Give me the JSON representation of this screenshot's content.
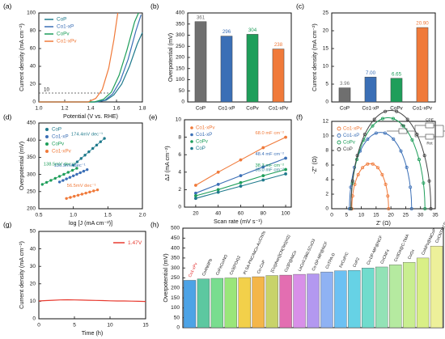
{
  "figure": {
    "panels": [
      {
        "id": "a",
        "letter": "(a)"
      },
      {
        "id": "b",
        "letter": "(b)"
      },
      {
        "id": "c",
        "letter": "(c)"
      },
      {
        "id": "d",
        "letter": "(d)"
      },
      {
        "id": "e",
        "letter": "(e)"
      },
      {
        "id": "f",
        "letter": "(f)"
      },
      {
        "id": "g",
        "letter": "(g)"
      },
      {
        "id": "h",
        "letter": "(h)"
      }
    ]
  },
  "chart_data": [
    {
      "id": "a",
      "type": "line",
      "xlabel": "Potential (V vs. RHE)",
      "ylabel": "Current density (mA cm⁻²)",
      "xlim": [
        1.0,
        1.8
      ],
      "ylim": [
        0,
        100
      ],
      "xticks": [
        "1.0",
        "1.2",
        "1.4",
        "1.6",
        "1.8"
      ],
      "yticks": [
        "0",
        "20",
        "40",
        "60",
        "80",
        "100"
      ],
      "annotation": "10",
      "reference_line_y": 10,
      "legend": "top-left",
      "series": [
        {
          "name": "CoP",
          "color": "#1f7a8c",
          "points": [
            [
              1.0,
              0
            ],
            [
              1.45,
              0
            ],
            [
              1.52,
              2
            ],
            [
              1.58,
              8
            ],
            [
              1.64,
              20
            ],
            [
              1.7,
              40
            ],
            [
              1.76,
              65
            ],
            [
              1.8,
              78
            ]
          ]
        },
        {
          "name": "Co1-xP",
          "color": "#3b6fb6",
          "points": [
            [
              1.0,
              0
            ],
            [
              1.44,
              0
            ],
            [
              1.51,
              2
            ],
            [
              1.57,
              9
            ],
            [
              1.63,
              24
            ],
            [
              1.69,
              48
            ],
            [
              1.75,
              80
            ],
            [
              1.79,
              98
            ]
          ]
        },
        {
          "name": "CoPv",
          "color": "#1e9e5a",
          "points": [
            [
              1.0,
              0
            ],
            [
              1.43,
              0
            ],
            [
              1.5,
              3
            ],
            [
              1.56,
              11
            ],
            [
              1.62,
              30
            ],
            [
              1.68,
              58
            ],
            [
              1.74,
              90
            ],
            [
              1.77,
              100
            ]
          ]
        },
        {
          "name": "Co1-xPv",
          "color": "#f07a3a",
          "points": [
            [
              1.0,
              0
            ],
            [
              1.38,
              0
            ],
            [
              1.44,
              4
            ],
            [
              1.49,
              14
            ],
            [
              1.54,
              38
            ],
            [
              1.58,
              70
            ],
            [
              1.61,
              100
            ]
          ]
        }
      ]
    },
    {
      "id": "b",
      "type": "bar",
      "xlabel": "",
      "ylabel": "Overpotential (mV)",
      "ylim": [
        0,
        400
      ],
      "yticks": [
        "0",
        "50",
        "100",
        "150",
        "200",
        "250",
        "300",
        "350",
        "400"
      ],
      "categories": [
        "CoP",
        "Co1-xP",
        "CoPv",
        "Co1-xPv"
      ],
      "values": [
        361,
        296,
        304,
        238
      ],
      "value_labels": [
        "361",
        "296",
        "304",
        "238"
      ],
      "colors": [
        "#6f6f6f",
        "#3b6fb6",
        "#1e9e5a",
        "#f07a3a"
      ]
    },
    {
      "id": "c",
      "type": "bar",
      "xlabel": "",
      "ylabel": "Current density (mA cm⁻²)",
      "ylim": [
        0,
        25
      ],
      "yticks": [
        "0",
        "5",
        "10",
        "15",
        "20",
        "25"
      ],
      "categories": [
        "CoP",
        "Co1-xP",
        "CoPv",
        "Co1-xPv"
      ],
      "values": [
        3.96,
        7.0,
        6.65,
        20.9
      ],
      "value_labels": [
        "3.96",
        "7.00",
        "6.65",
        "20.90"
      ],
      "colors": [
        "#6f6f6f",
        "#3b6fb6",
        "#1e9e5a",
        "#f07a3a"
      ]
    },
    {
      "id": "d",
      "type": "scatter",
      "xlabel": "log [J (mA cm⁻²)]",
      "ylabel": "Overpotential (mV)",
      "xlim": [
        0.5,
        2.0
      ],
      "ylim": [
        200,
        450
      ],
      "xticks": [
        "0.5",
        "1.0",
        "1.5",
        "2.0"
      ],
      "yticks": [
        "200",
        "250",
        "300",
        "350",
        "400",
        "450"
      ],
      "legend": "top-left",
      "series": [
        {
          "name": "CoP",
          "color": "#1f7a8c",
          "slope_label": "174.4mV dec⁻¹",
          "x_range": [
            1.0,
            1.45
          ],
          "y_range": [
            327,
            405
          ]
        },
        {
          "name": "Co1-xP",
          "color": "#3b6fb6",
          "slope_label": "136.9mV dec⁻¹",
          "x_range": [
            0.8,
            1.2
          ],
          "y_range": [
            278,
            314
          ]
        },
        {
          "name": "CoPv",
          "color": "#1e9e5a",
          "slope_label": "138.5mV dec⁻¹",
          "x_range": [
            0.55,
            1.05
          ],
          "y_range": [
            271,
            318
          ]
        },
        {
          "name": "Co1-xPv",
          "color": "#f07a3a",
          "slope_label": "56.5mV dec⁻¹",
          "x_range": [
            0.9,
            1.35
          ],
          "y_range": [
            230,
            255
          ]
        }
      ]
    },
    {
      "id": "e",
      "type": "scatter",
      "xlabel": "Scan rate (mV s⁻¹)",
      "ylabel": "ΔJ (mA cm⁻²)",
      "xlim": [
        10,
        105
      ],
      "ylim": [
        0,
        10
      ],
      "xticks": [
        "20",
        "40",
        "60",
        "80",
        "100"
      ],
      "yticks": [
        "0",
        "2",
        "4",
        "6",
        "8",
        "10"
      ],
      "legend": "top-left",
      "series": [
        {
          "name": "Co1-xPv",
          "color": "#f07a3a",
          "label": "68.0 mF cm⁻²",
          "x": [
            20,
            40,
            60,
            80,
            100
          ],
          "y": [
            2.5,
            4.0,
            5.4,
            6.8,
            8.0
          ]
        },
        {
          "name": "Co1-xP",
          "color": "#3b6fb6",
          "label": "48.4 mF cm⁻²",
          "x": [
            20,
            40,
            60,
            80,
            100
          ],
          "y": [
            1.6,
            2.6,
            3.6,
            4.6,
            5.6
          ]
        },
        {
          "name": "CoPv",
          "color": "#1e9e5a",
          "label": "38.3 mF cm⁻²",
          "x": [
            20,
            40,
            60,
            80,
            100
          ],
          "y": [
            1.3,
            2.0,
            2.8,
            3.6,
            4.3
          ]
        },
        {
          "name": "CoP",
          "color": "#1f7a8c",
          "label": "35.0 mF cm⁻²",
          "x": [
            20,
            40,
            60,
            80,
            100
          ],
          "y": [
            1.0,
            1.7,
            2.4,
            3.1,
            3.8
          ]
        }
      ]
    },
    {
      "id": "f",
      "type": "scatter",
      "xlabel": "Z' (Ω)",
      "ylabel": "-Z'' (Ω)",
      "xlim": [
        0,
        35
      ],
      "ylim": [
        0,
        12
      ],
      "xticks": [
        "0",
        "5",
        "10",
        "15",
        "20",
        "25",
        "30",
        "35"
      ],
      "yticks": [
        "0",
        "2",
        "4",
        "6",
        "8",
        "10",
        "12"
      ],
      "legend": "top-left",
      "circuit_labels": [
        "Rs",
        "CPE",
        "Rct"
      ],
      "series": [
        {
          "name": "Co1-xPv",
          "color": "#f07a3a",
          "center": [
            13.0,
            0
          ],
          "radius": 6.2,
          "max_x": 19.2
        },
        {
          "name": "Co1-xP",
          "color": "#3b6fb6",
          "center": [
            16.5,
            0
          ],
          "radius": 10.5,
          "max_x": 27.0
        },
        {
          "name": "CoPv",
          "color": "#1e9e5a",
          "center": [
            19.0,
            0
          ],
          "radius": 12.5,
          "max_x": 31.5
        },
        {
          "name": "CoP",
          "color": "#444444",
          "center": [
            20.0,
            0
          ],
          "radius": 13.5,
          "max_x": 33.5
        }
      ]
    },
    {
      "id": "g",
      "type": "line",
      "xlabel": "Time (h)",
      "ylabel": "Current density (mA cm⁻²)",
      "xlim": [
        0,
        15
      ],
      "ylim": [
        0,
        50
      ],
      "xticks": [
        "0",
        "5",
        "10",
        "15"
      ],
      "yticks": [
        "0",
        "10",
        "20",
        "30",
        "40",
        "50"
      ],
      "legend": "top-right",
      "series": [
        {
          "name": "1.47V",
          "color": "#e83a2f",
          "x": [
            0,
            1,
            2,
            3,
            4,
            5,
            6,
            7,
            8,
            9,
            10,
            11,
            12,
            13,
            14,
            15
          ],
          "y": [
            10.2,
            10.4,
            10.6,
            10.8,
            10.9,
            10.8,
            10.7,
            10.6,
            10.5,
            10.4,
            10.3,
            10.2,
            10.2,
            10.1,
            10.0,
            9.9
          ]
        }
      ]
    },
    {
      "id": "h",
      "type": "bar",
      "xlabel": "",
      "ylabel": "Overpotential (mV)",
      "ylim": [
        0,
        500
      ],
      "yticks": [
        "0",
        "50",
        "100",
        "150",
        "200",
        "250",
        "300",
        "350",
        "400",
        "450",
        "500"
      ],
      "categories": [
        "Co1-xPv",
        "Co4Ni3Pb",
        "CoFeCo/NO",
        "Co3(PO4)2",
        "Pt SA-PNC/NiCo-Ac/CNTs",
        "Co-CoP",
        "[Co(phen)]CN(Tet)(H2)",
        "Co3P@NiCo",
        "LaCo0.2Bi0.5CoO3",
        "Co-DP-MP@NCF",
        "CoTPA-D",
        "FeCoP/C",
        "CoP2",
        "Co-DP-MP@NCF",
        "CoCNFs",
        "Co3O4@C-TMA",
        "CoOx",
        "CoNPs@NiCoP",
        "CoCNTMCP"
      ],
      "values": [
        238,
        245,
        248,
        250,
        252,
        256,
        262,
        264,
        268,
        270,
        280,
        286,
        288,
        300,
        305,
        316,
        328,
        350,
        410
      ],
      "colors": [
        "#4da3e6",
        "#5cc8a0",
        "#79dd8f",
        "#9ae67a",
        "#f2d04a",
        "#f4b64a",
        "#c8d36a",
        "#e36eb1",
        "#d890e8",
        "#b398f0",
        "#8fb2f3",
        "#6cc1f3",
        "#66d2e5",
        "#70dccd",
        "#93e2b6",
        "#b5eaa0",
        "#c9ee90",
        "#d9ef86",
        "#edf09a"
      ],
      "label_style": "rotated"
    }
  ]
}
